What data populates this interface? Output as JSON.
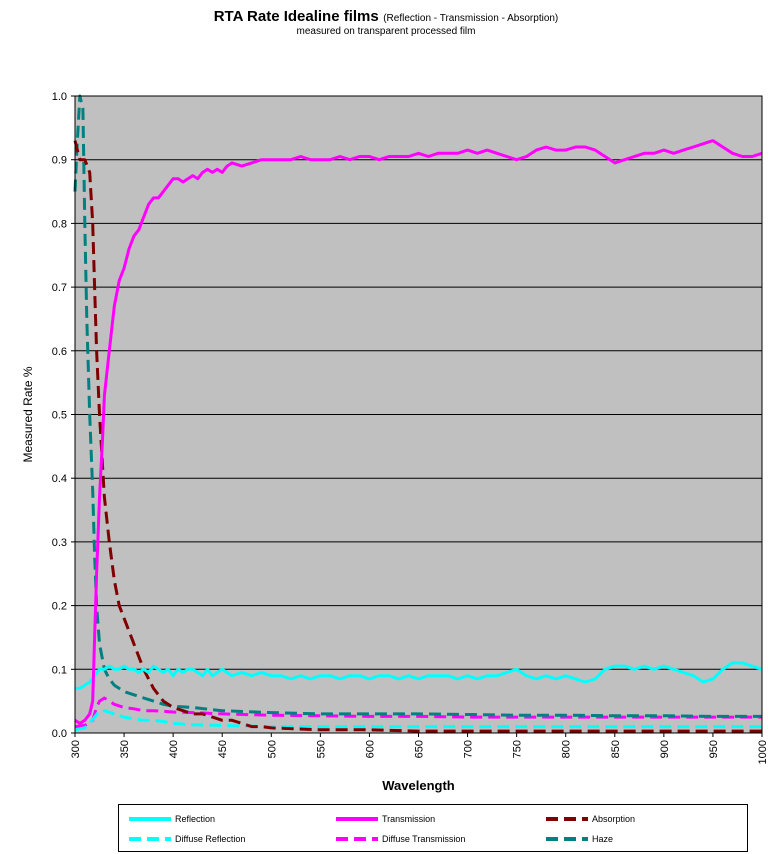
{
  "chart_data": {
    "type": "line",
    "title": "RTA Rate Idealine films",
    "title_suffix": "(Reflection - Transmission - Absorption)",
    "subtitle": "measured on transparent processed film",
    "xlabel": "Wavelength",
    "ylabel": "Measured Rate %",
    "xlim": [
      300,
      1000
    ],
    "ylim": [
      0,
      1.0
    ],
    "x_ticks": [
      "300",
      "350",
      "400",
      "450",
      "500",
      "550",
      "600",
      "650",
      "700",
      "750",
      "800",
      "850",
      "900",
      "950",
      "1000"
    ],
    "y_ticks": [
      "0.0",
      "0.1",
      "0.2",
      "0.3",
      "0.4",
      "0.5",
      "0.6",
      "0.7",
      "0.8",
      "0.9",
      "1.0"
    ],
    "grid": "horizontal",
    "plot_background": "#c0c0c0",
    "legend_position": "bottom",
    "series": [
      {
        "name": "Reflection",
        "color": "#00ffff",
        "dash": "solid",
        "points": [
          [
            300,
            0.07
          ],
          [
            305,
            0.07
          ],
          [
            310,
            0.075
          ],
          [
            315,
            0.08
          ],
          [
            320,
            0.09
          ],
          [
            325,
            0.1
          ],
          [
            330,
            0.1
          ],
          [
            335,
            0.105
          ],
          [
            340,
            0.1
          ],
          [
            345,
            0.1
          ],
          [
            350,
            0.105
          ],
          [
            355,
            0.1
          ],
          [
            360,
            0.1
          ],
          [
            365,
            0.095
          ],
          [
            370,
            0.1
          ],
          [
            375,
            0.095
          ],
          [
            380,
            0.105
          ],
          [
            385,
            0.1
          ],
          [
            390,
            0.095
          ],
          [
            395,
            0.1
          ],
          [
            400,
            0.09
          ],
          [
            405,
            0.1
          ],
          [
            410,
            0.095
          ],
          [
            415,
            0.1
          ],
          [
            420,
            0.1
          ],
          [
            425,
            0.095
          ],
          [
            430,
            0.09
          ],
          [
            435,
            0.1
          ],
          [
            440,
            0.09
          ],
          [
            445,
            0.095
          ],
          [
            450,
            0.1
          ],
          [
            455,
            0.095
          ],
          [
            460,
            0.09
          ],
          [
            470,
            0.095
          ],
          [
            480,
            0.09
          ],
          [
            490,
            0.095
          ],
          [
            500,
            0.09
          ],
          [
            510,
            0.09
          ],
          [
            520,
            0.085
          ],
          [
            530,
            0.09
          ],
          [
            540,
            0.085
          ],
          [
            550,
            0.09
          ],
          [
            560,
            0.09
          ],
          [
            570,
            0.085
          ],
          [
            580,
            0.09
          ],
          [
            590,
            0.09
          ],
          [
            600,
            0.085
          ],
          [
            610,
            0.09
          ],
          [
            620,
            0.09
          ],
          [
            630,
            0.085
          ],
          [
            640,
            0.09
          ],
          [
            650,
            0.085
          ],
          [
            660,
            0.09
          ],
          [
            670,
            0.09
          ],
          [
            680,
            0.09
          ],
          [
            690,
            0.085
          ],
          [
            700,
            0.09
          ],
          [
            710,
            0.085
          ],
          [
            720,
            0.09
          ],
          [
            730,
            0.09
          ],
          [
            740,
            0.095
          ],
          [
            750,
            0.1
          ],
          [
            760,
            0.09
          ],
          [
            770,
            0.085
          ],
          [
            780,
            0.09
          ],
          [
            790,
            0.085
          ],
          [
            800,
            0.09
          ],
          [
            810,
            0.085
          ],
          [
            820,
            0.08
          ],
          [
            830,
            0.085
          ],
          [
            840,
            0.1
          ],
          [
            850,
            0.105
          ],
          [
            860,
            0.105
          ],
          [
            870,
            0.1
          ],
          [
            880,
            0.105
          ],
          [
            890,
            0.1
          ],
          [
            900,
            0.105
          ],
          [
            910,
            0.1
          ],
          [
            920,
            0.095
          ],
          [
            930,
            0.09
          ],
          [
            940,
            0.08
          ],
          [
            950,
            0.085
          ],
          [
            960,
            0.1
          ],
          [
            970,
            0.11
          ],
          [
            980,
            0.11
          ],
          [
            990,
            0.105
          ],
          [
            1000,
            0.1
          ]
        ]
      },
      {
        "name": "Transmission",
        "color": "#ff00ff",
        "dash": "solid",
        "points": [
          [
            300,
            0.02
          ],
          [
            305,
            0.015
          ],
          [
            310,
            0.02
          ],
          [
            315,
            0.03
          ],
          [
            318,
            0.05
          ],
          [
            320,
            0.15
          ],
          [
            322,
            0.25
          ],
          [
            325,
            0.37
          ],
          [
            328,
            0.46
          ],
          [
            330,
            0.53
          ],
          [
            335,
            0.6
          ],
          [
            340,
            0.67
          ],
          [
            345,
            0.71
          ],
          [
            350,
            0.73
          ],
          [
            355,
            0.76
          ],
          [
            360,
            0.78
          ],
          [
            365,
            0.79
          ],
          [
            370,
            0.81
          ],
          [
            375,
            0.83
          ],
          [
            380,
            0.84
          ],
          [
            385,
            0.84
          ],
          [
            390,
            0.85
          ],
          [
            395,
            0.86
          ],
          [
            400,
            0.87
          ],
          [
            405,
            0.87
          ],
          [
            410,
            0.865
          ],
          [
            415,
            0.87
          ],
          [
            420,
            0.875
          ],
          [
            425,
            0.87
          ],
          [
            430,
            0.88
          ],
          [
            435,
            0.885
          ],
          [
            440,
            0.88
          ],
          [
            445,
            0.885
          ],
          [
            450,
            0.88
          ],
          [
            455,
            0.89
          ],
          [
            460,
            0.895
          ],
          [
            470,
            0.89
          ],
          [
            480,
            0.895
          ],
          [
            490,
            0.9
          ],
          [
            500,
            0.9
          ],
          [
            510,
            0.9
          ],
          [
            520,
            0.9
          ],
          [
            530,
            0.905
          ],
          [
            540,
            0.9
          ],
          [
            550,
            0.9
          ],
          [
            560,
            0.9
          ],
          [
            570,
            0.905
          ],
          [
            580,
            0.9
          ],
          [
            590,
            0.905
          ],
          [
            600,
            0.905
          ],
          [
            610,
            0.9
          ],
          [
            620,
            0.905
          ],
          [
            630,
            0.905
          ],
          [
            640,
            0.905
          ],
          [
            650,
            0.91
          ],
          [
            660,
            0.905
          ],
          [
            670,
            0.91
          ],
          [
            680,
            0.91
          ],
          [
            690,
            0.91
          ],
          [
            700,
            0.915
          ],
          [
            710,
            0.91
          ],
          [
            720,
            0.915
          ],
          [
            730,
            0.91
          ],
          [
            740,
            0.905
          ],
          [
            750,
            0.9
          ],
          [
            760,
            0.905
          ],
          [
            770,
            0.915
          ],
          [
            780,
            0.92
          ],
          [
            790,
            0.915
          ],
          [
            800,
            0.915
          ],
          [
            810,
            0.92
          ],
          [
            820,
            0.92
          ],
          [
            830,
            0.915
          ],
          [
            840,
            0.905
          ],
          [
            850,
            0.895
          ],
          [
            860,
            0.9
          ],
          [
            870,
            0.905
          ],
          [
            880,
            0.91
          ],
          [
            890,
            0.91
          ],
          [
            900,
            0.915
          ],
          [
            910,
            0.91
          ],
          [
            920,
            0.915
          ],
          [
            930,
            0.92
          ],
          [
            940,
            0.925
          ],
          [
            950,
            0.93
          ],
          [
            960,
            0.92
          ],
          [
            970,
            0.91
          ],
          [
            980,
            0.905
          ],
          [
            990,
            0.905
          ],
          [
            1000,
            0.91
          ]
        ]
      },
      {
        "name": "Absorption",
        "color": "#800000",
        "dash": "dashed",
        "points": [
          [
            300,
            0.93
          ],
          [
            305,
            0.9
          ],
          [
            310,
            0.9
          ],
          [
            315,
            0.88
          ],
          [
            318,
            0.8
          ],
          [
            320,
            0.7
          ],
          [
            322,
            0.6
          ],
          [
            325,
            0.5
          ],
          [
            328,
            0.42
          ],
          [
            330,
            0.37
          ],
          [
            335,
            0.3
          ],
          [
            340,
            0.24
          ],
          [
            345,
            0.2
          ],
          [
            350,
            0.18
          ],
          [
            355,
            0.16
          ],
          [
            360,
            0.14
          ],
          [
            365,
            0.12
          ],
          [
            370,
            0.1
          ],
          [
            375,
            0.085
          ],
          [
            380,
            0.07
          ],
          [
            385,
            0.06
          ],
          [
            390,
            0.05
          ],
          [
            395,
            0.045
          ],
          [
            400,
            0.04
          ],
          [
            410,
            0.035
          ],
          [
            420,
            0.03
          ],
          [
            430,
            0.03
          ],
          [
            440,
            0.025
          ],
          [
            450,
            0.02
          ],
          [
            460,
            0.02
          ],
          [
            470,
            0.015
          ],
          [
            480,
            0.01
          ],
          [
            490,
            0.01
          ],
          [
            500,
            0.008
          ],
          [
            550,
            0.005
          ],
          [
            600,
            0.005
          ],
          [
            650,
            0.003
          ],
          [
            700,
            0.003
          ],
          [
            750,
            0.003
          ],
          [
            800,
            0.003
          ],
          [
            850,
            0.003
          ],
          [
            900,
            0.003
          ],
          [
            950,
            0.003
          ],
          [
            1000,
            0.003
          ]
        ]
      },
      {
        "name": "Diffuse Reflection",
        "color": "#00ffff",
        "dash": "dashed",
        "points": [
          [
            300,
            0.005
          ],
          [
            310,
            0.008
          ],
          [
            315,
            0.015
          ],
          [
            320,
            0.025
          ],
          [
            325,
            0.035
          ],
          [
            330,
            0.035
          ],
          [
            340,
            0.03
          ],
          [
            350,
            0.025
          ],
          [
            360,
            0.022
          ],
          [
            370,
            0.02
          ],
          [
            380,
            0.02
          ],
          [
            390,
            0.018
          ],
          [
            400,
            0.015
          ],
          [
            420,
            0.013
          ],
          [
            450,
            0.012
          ],
          [
            500,
            0.01
          ],
          [
            550,
            0.01
          ],
          [
            600,
            0.01
          ],
          [
            650,
            0.01
          ],
          [
            700,
            0.01
          ],
          [
            750,
            0.01
          ],
          [
            800,
            0.01
          ],
          [
            850,
            0.01
          ],
          [
            900,
            0.01
          ],
          [
            950,
            0.01
          ],
          [
            1000,
            0.01
          ]
        ]
      },
      {
        "name": "Diffuse Transmission",
        "color": "#ff00ff",
        "dash": "dashed",
        "points": [
          [
            300,
            0.01
          ],
          [
            310,
            0.012
          ],
          [
            318,
            0.02
          ],
          [
            322,
            0.04
          ],
          [
            325,
            0.05
          ],
          [
            330,
            0.055
          ],
          [
            335,
            0.05
          ],
          [
            340,
            0.045
          ],
          [
            350,
            0.04
          ],
          [
            360,
            0.038
          ],
          [
            370,
            0.035
          ],
          [
            380,
            0.035
          ],
          [
            400,
            0.033
          ],
          [
            420,
            0.032
          ],
          [
            450,
            0.03
          ],
          [
            500,
            0.028
          ],
          [
            550,
            0.027
          ],
          [
            600,
            0.026
          ],
          [
            650,
            0.026
          ],
          [
            700,
            0.025
          ],
          [
            750,
            0.025
          ],
          [
            800,
            0.025
          ],
          [
            850,
            0.025
          ],
          [
            900,
            0.025
          ],
          [
            950,
            0.025
          ],
          [
            1000,
            0.025
          ]
        ]
      },
      {
        "name": "Haze",
        "color": "#008080",
        "dash": "dashed",
        "points": [
          [
            300,
            0.85
          ],
          [
            302,
            0.92
          ],
          [
            305,
            1.0
          ],
          [
            308,
            0.98
          ],
          [
            310,
            0.8
          ],
          [
            312,
            0.65
          ],
          [
            315,
            0.5
          ],
          [
            318,
            0.38
          ],
          [
            320,
            0.28
          ],
          [
            322,
            0.2
          ],
          [
            325,
            0.14
          ],
          [
            330,
            0.1
          ],
          [
            335,
            0.085
          ],
          [
            340,
            0.075
          ],
          [
            350,
            0.065
          ],
          [
            360,
            0.06
          ],
          [
            370,
            0.055
          ],
          [
            380,
            0.05
          ],
          [
            390,
            0.045
          ],
          [
            400,
            0.042
          ],
          [
            420,
            0.04
          ],
          [
            450,
            0.035
          ],
          [
            500,
            0.032
          ],
          [
            550,
            0.03
          ],
          [
            600,
            0.03
          ],
          [
            650,
            0.03
          ],
          [
            700,
            0.029
          ],
          [
            750,
            0.028
          ],
          [
            800,
            0.028
          ],
          [
            850,
            0.027
          ],
          [
            900,
            0.027
          ],
          [
            950,
            0.026
          ],
          [
            1000,
            0.026
          ]
        ]
      }
    ]
  }
}
